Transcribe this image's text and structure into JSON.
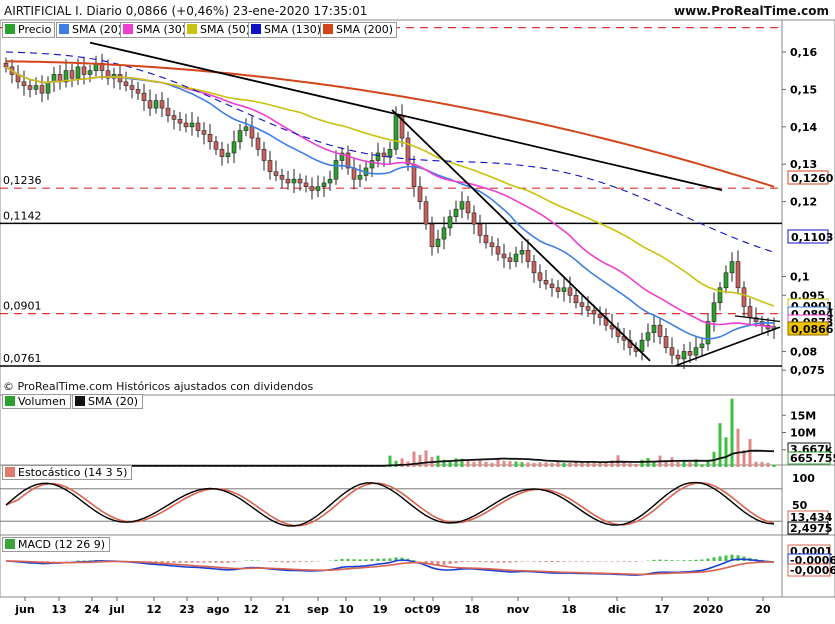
{
  "header": {
    "title": "AIRTIFICIAL I. Diario 0,0866 (+0,46%) 23-ene-2020 17:35:01",
    "site": "www.ProRealTime.com"
  },
  "price_panel": {
    "legend": [
      {
        "label": "Precio",
        "color": "#2ca02c"
      },
      {
        "label": "SMA (20)",
        "color": "#3f7fe3"
      },
      {
        "label": "SMA (30)",
        "color": "#ee3fd0"
      },
      {
        "label": "SMA (50)",
        "color": "#c9c20e"
      },
      {
        "label": "SMA (130)",
        "color": "#1010c8"
      },
      {
        "label": "SMA (200)",
        "color": "#d2461c"
      }
    ],
    "copyright": "© ProRealTime.com  Históricos ajustados con dividendos",
    "level_labels": [
      "0,1236",
      "0,1142",
      "0,0901",
      "0,0761"
    ],
    "axis_ticks": [
      "0,16",
      "0,15",
      "0,14",
      "0,13",
      "0,12",
      "0,1",
      "0,095",
      "0,08",
      "0,075"
    ],
    "value_boxes": [
      {
        "text": "0,1260",
        "color": "#d2461c"
      },
      {
        "text": "0,1103",
        "color": "#1010c8"
      },
      {
        "text": "0,0901",
        "color": "#c9c20e"
      },
      {
        "text": "0,0894",
        "color": "#3f7fe3"
      },
      {
        "text": "0,0873",
        "color": "#ee3fd0"
      },
      {
        "text": "0,0866",
        "color": "#f2c400"
      }
    ]
  },
  "volume_panel": {
    "legend": [
      {
        "label": "Volumen",
        "color": "#2ca02c"
      },
      {
        "label": "SMA (20)",
        "color": "#111111"
      }
    ],
    "axis_ticks": [
      "15M",
      "10M",
      "5M"
    ],
    "value_boxes": [
      "3.667k",
      "665.755"
    ]
  },
  "stoch_panel": {
    "legend": "Estocástico (14 3 5)",
    "axis_ticks": [
      "100",
      "50"
    ],
    "value_boxes": [
      "13,434",
      "2,4975"
    ]
  },
  "macd_panel": {
    "legend": "MACD (12 26 9)",
    "value_boxes": [
      "0,0001",
      "-0,0006",
      "-0,0006"
    ]
  },
  "x_axis": [
    "jun",
    "13",
    "24",
    "jul",
    "12",
    "23",
    "ago",
    "12",
    "21",
    "sep",
    "10",
    "19",
    "oct",
    "09",
    "18",
    "nov",
    "18",
    "dic",
    "17",
    "2020",
    "20"
  ],
  "chart_data": {
    "type": "candlestick",
    "symbol": "AIRTIFICIAL I.",
    "last": 0.0866,
    "change_pct": 0.46,
    "ylim": [
      0.0745,
      0.168
    ],
    "x_labels": [
      "jun",
      "13",
      "24",
      "jul",
      "12",
      "23",
      "ago",
      "12",
      "21",
      "sep",
      "10",
      "19",
      "oct",
      "09",
      "18",
      "nov",
      "18",
      "dic",
      "17",
      "2020",
      "20"
    ],
    "horizontal_levels": [
      0.1236,
      0.1142,
      0.0901,
      0.0761
    ],
    "sma_last": {
      "SMA (20)": 0.0894,
      "SMA (30)": 0.0873,
      "SMA (50)": 0.0901,
      "SMA (130)": 0.1103,
      "SMA (200)": 0.126
    },
    "close": [
      0.156,
      0.154,
      0.152,
      0.151,
      0.15,
      0.151,
      0.149,
      0.152,
      0.154,
      0.152,
      0.155,
      0.153,
      0.156,
      0.154,
      0.155,
      0.157,
      0.155,
      0.153,
      0.154,
      0.152,
      0.151,
      0.15,
      0.149,
      0.147,
      0.145,
      0.147,
      0.145,
      0.143,
      0.142,
      0.141,
      0.14,
      0.141,
      0.139,
      0.138,
      0.136,
      0.134,
      0.132,
      0.133,
      0.136,
      0.139,
      0.14,
      0.137,
      0.134,
      0.131,
      0.128,
      0.127,
      0.126,
      0.125,
      0.126,
      0.125,
      0.124,
      0.123,
      0.124,
      0.125,
      0.126,
      0.131,
      0.133,
      0.129,
      0.126,
      0.127,
      0.129,
      0.131,
      0.133,
      0.132,
      0.134,
      0.143,
      0.137,
      0.13,
      0.124,
      0.12,
      0.114,
      0.108,
      0.11,
      0.113,
      0.116,
      0.118,
      0.12,
      0.117,
      0.114,
      0.111,
      0.109,
      0.108,
      0.106,
      0.105,
      0.104,
      0.106,
      0.107,
      0.104,
      0.101,
      0.099,
      0.098,
      0.097,
      0.096,
      0.097,
      0.095,
      0.093,
      0.092,
      0.091,
      0.09,
      0.089,
      0.087,
      0.086,
      0.084,
      0.083,
      0.081,
      0.08,
      0.083,
      0.085,
      0.087,
      0.084,
      0.081,
      0.079,
      0.078,
      0.08,
      0.079,
      0.081,
      0.082,
      0.088,
      0.093,
      0.097,
      0.101,
      0.104,
      0.097,
      0.092,
      0.089,
      0.088,
      0.087,
      0.086,
      0.0866
    ],
    "volume": [
      0.3,
      0.3,
      0.3,
      0.3,
      0.3,
      0.3,
      0.3,
      0.3,
      0.3,
      0.4,
      0.3,
      0.3,
      0.3,
      0.4,
      0.3,
      0.3,
      0.3,
      0.4,
      0.3,
      0.3,
      0.3,
      0.3,
      0.3,
      0.3,
      0.3,
      0.4,
      0.3,
      0.3,
      0.3,
      0.3,
      0.4,
      0.3,
      0.3,
      0.3,
      0.3,
      0.4,
      0.3,
      0.3,
      0.3,
      0.3,
      0.3,
      0.3,
      0.3,
      0.3,
      0.3,
      0.4,
      0.3,
      0.3,
      0.3,
      0.3,
      0.3,
      0.3,
      0.3,
      0.3,
      0.3,
      0.3,
      0.3,
      0.3,
      0.3,
      0.3,
      0.3,
      0.3,
      0.3,
      0.3,
      3.3,
      1.8,
      2.5,
      1.6,
      4.5,
      3.5,
      4.8,
      2.9,
      3.3,
      2.1,
      1.9,
      2.5,
      2.4,
      1.8,
      1.5,
      2.0,
      1.5,
      1.2,
      2.2,
      1.8,
      1.7,
      1.6,
      1.4,
      1.3,
      1.2,
      1.4,
      1.3,
      1.2,
      1.4,
      1.2,
      1.2,
      1.6,
      1.3,
      1.7,
      1.2,
      1.2,
      1.5,
      1.9,
      3.4,
      1.6,
      1.1,
      0.9,
      2.1,
      2.6,
      1.5,
      3.3,
      1.5,
      2.8,
      1.5,
      1.9,
      1.4,
      2.2,
      0.8,
      1.6,
      4.4,
      12.7,
      8.6,
      19.8,
      11.1,
      4.9,
      8.1,
      1.5,
      1.5,
      1.2,
      0.7
    ],
    "stochastic_last": [
      13.434,
      2.4975
    ],
    "macd_last": [
      0.0001,
      -0.0006,
      -0.0006
    ]
  }
}
